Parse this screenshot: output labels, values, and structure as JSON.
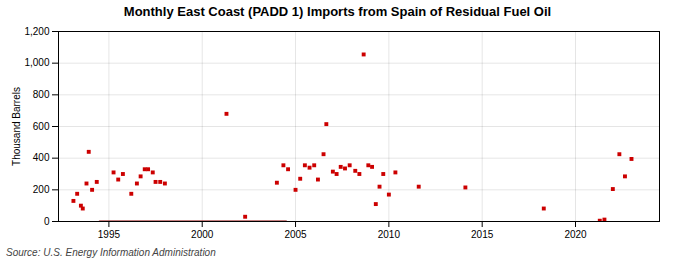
{
  "chart_data": {
    "type": "scatter",
    "title": "Monthly East Coast (PADD 1) Imports from Spain of Residual Fuel Oil",
    "ylabel": "Thousand Barrels",
    "source": "Source: U.S. Energy Information Administration",
    "xlim": [
      1992.3,
      2024.5
    ],
    "xticks": [
      1995,
      2000,
      2005,
      2010,
      2015,
      2020
    ],
    "ylim": [
      0,
      1200
    ],
    "yticks": [
      0,
      200,
      400,
      600,
      800,
      {
        "value": 1000,
        "label": "1,000"
      },
      {
        "value": 1200,
        "label": "1,200"
      }
    ],
    "grid": true,
    "series": [
      {
        "type": "scatter",
        "color": "#cc0000",
        "marker": "square",
        "x": [
          1993.1,
          1993.3,
          1993.5,
          1993.6,
          1993.8,
          1993.92,
          1994.1,
          1994.35,
          1995.25,
          1995.5,
          1995.75,
          1996.2,
          1996.5,
          1996.7,
          1996.92,
          1997.1,
          1997.35,
          1997.5,
          1997.75,
          1998.0,
          2001.3,
          2002.3,
          2004.0,
          2004.35,
          2004.6,
          2005.0,
          2005.25,
          2005.5,
          2005.75,
          2006.0,
          2006.2,
          2006.5,
          2006.65,
          2007.0,
          2007.2,
          2007.42,
          2007.65,
          2007.9,
          2008.2,
          2008.42,
          2008.65,
          2008.9,
          2009.1,
          2009.3,
          2009.5,
          2009.7,
          2010.0,
          2010.35,
          2011.6,
          2014.1,
          2018.3,
          2021.3,
          2021.55,
          2022.0,
          2022.35,
          2022.65,
          2023.0
        ],
        "values": [
          130,
          175,
          100,
          82,
          240,
          440,
          200,
          250,
          310,
          265,
          300,
          175,
          240,
          285,
          330,
          330,
          310,
          250,
          250,
          240,
          680,
          30,
          245,
          355,
          330,
          200,
          270,
          355,
          340,
          355,
          265,
          425,
          615,
          315,
          300,
          345,
          335,
          355,
          320,
          300,
          1055,
          355,
          345,
          110,
          220,
          300,
          170,
          310,
          220,
          215,
          82,
          5,
          12,
          205,
          425,
          285,
          395
        ]
      },
      {
        "type": "line",
        "color": "#8b0000",
        "line_style": "solid",
        "x": [
          1994.5,
          2004.5
        ],
        "values": [
          0,
          0
        ]
      }
    ]
  }
}
